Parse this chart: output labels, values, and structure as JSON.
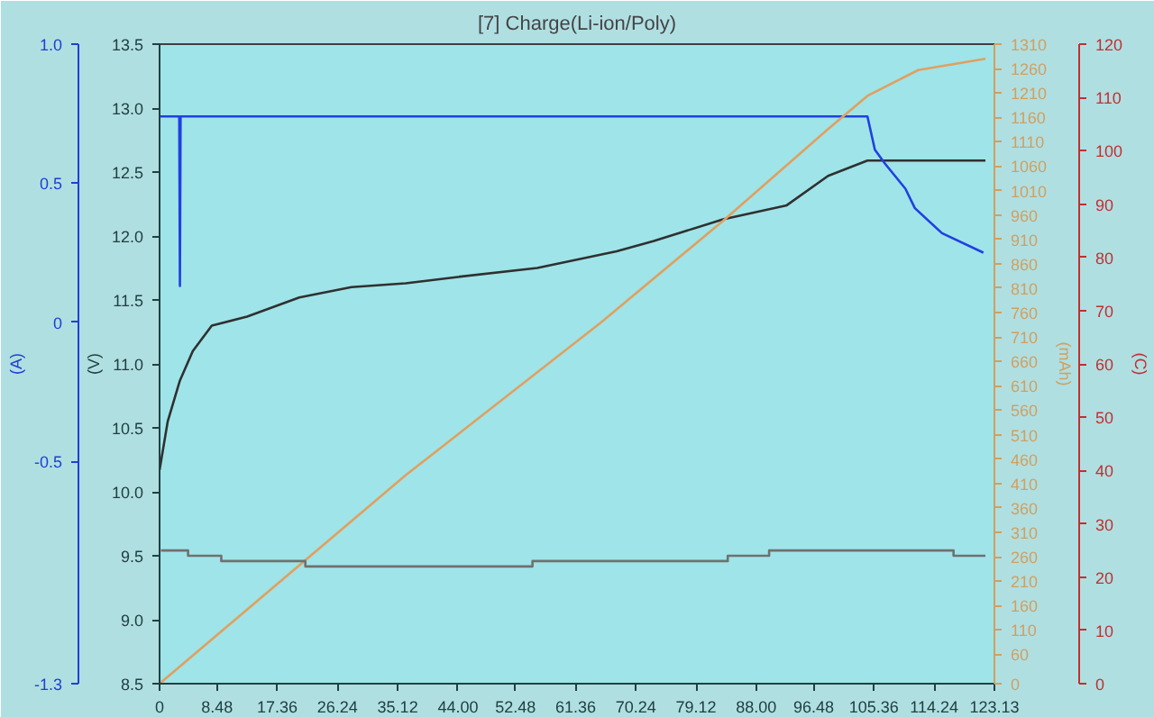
{
  "chart_data": [
    {
      "type": "line",
      "title": "[7] Charge(Li-ion/Poly)",
      "ylabel": "(V)",
      "y2label": "(A)",
      "y3label": "(mAh)",
      "xlim": [
        0,
        123.13
      ],
      "xticks": [
        0,
        8.48,
        17.36,
        26.24,
        35.12,
        {
          "value": 44.0,
          "label": "44.00"
        },
        52.48,
        61.36,
        70.24,
        79.12,
        {
          "value": 88.0,
          "label": "88.00"
        },
        96.48,
        105.36,
        114.24,
        123.13
      ],
      "ylim": [
        8.5,
        13.5
      ],
      "yticks": [
        8.5,
        {
          "value": 9.0,
          "label": "9.0"
        },
        9.5,
        {
          "value": 10.0,
          "label": "10.0"
        },
        10.5,
        {
          "value": 11.0,
          "label": "11.0"
        },
        11.5,
        {
          "value": 12.0,
          "label": "12.0"
        },
        12.5,
        {
          "value": 13.0,
          "label": "13.0"
        },
        13.5
      ],
      "y2lim": [
        -1.3,
        1.0
      ],
      "y2ticks": [
        {
          "value": 1.0,
          "label": "1.0"
        },
        0.5,
        0,
        -0.5,
        -1.3
      ],
      "y3lim": [
        0,
        1310
      ],
      "y3ticks": [
        0,
        60,
        110,
        160,
        210,
        260,
        310,
        360,
        410,
        460,
        510,
        560,
        610,
        660,
        710,
        760,
        810,
        860,
        910,
        960,
        1010,
        1060,
        1110,
        1160,
        1210,
        1260,
        1310
      ],
      "grid": false,
      "marker": "none",
      "series": [
        {
          "color": "#303030",
          "x": [
            0,
            1.2,
            3.0,
            4.9,
            7.7,
            12.9,
            20.6,
            28.3,
            36.3,
            44.0,
            55.7,
            67.4,
            72.8,
            83.1,
            92.5,
            98.6,
            104.4,
            121.8
          ],
          "values": [
            10.17,
            10.55,
            10.87,
            11.1,
            11.3,
            11.37,
            11.52,
            11.6,
            11.63,
            11.68,
            11.75,
            11.88,
            11.96,
            12.13,
            12.24,
            12.47,
            12.59,
            12.59
          ]
        },
        {
          "axis": "y2",
          "color": "#2040e0",
          "x": [
            0,
            2.9,
            3.0,
            3.1,
            104.4,
            105.5,
            107.0,
            110.0,
            111.4,
            115.4,
            121.5
          ],
          "values": [
            0.74,
            0.74,
            0.13,
            0.74,
            0.74,
            0.62,
            0.57,
            0.48,
            0.41,
            0.32,
            0.25
          ]
        },
        {
          "axis": "y3",
          "color": "#e0a060",
          "x": [
            0,
            36.3,
            65.1,
            83.1,
            98.6,
            104.4,
            111.9,
            121.8
          ],
          "values": [
            0,
            427,
            740,
            948,
            1136,
            1204,
            1257,
            1280
          ]
        }
      ]
    },
    {
      "type": "step",
      "ylabel": "(C)",
      "tick_labels": "y",
      "xlim": [
        0,
        123.13
      ],
      "ylim": [
        0,
        120
      ],
      "yticks": [
        0,
        10,
        20,
        30,
        40,
        50,
        60,
        70,
        80,
        90,
        100,
        110,
        120
      ],
      "series": [
        {
          "color": "#707070",
          "x": [
            0.2,
            4.2,
            9.1,
            21.5,
            55.0,
            83.8,
            89.9,
            117.1,
            121.8
          ],
          "values": [
            25,
            24,
            23,
            22,
            23,
            24,
            25,
            24,
            24
          ]
        }
      ]
    }
  ]
}
